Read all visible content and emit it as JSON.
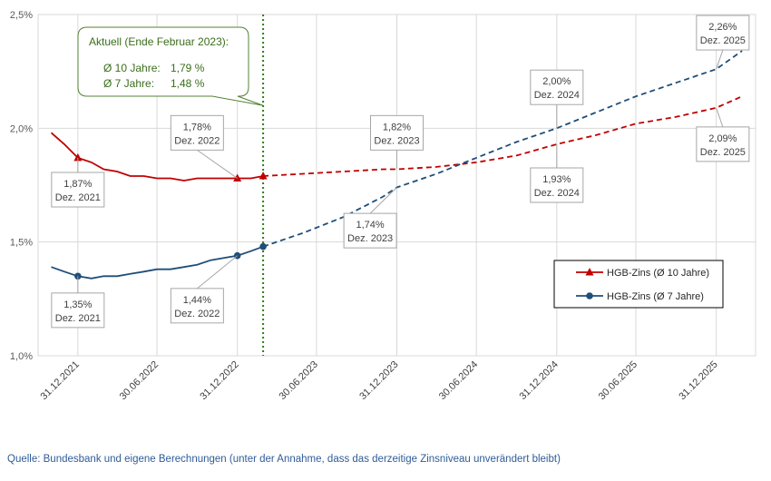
{
  "chart_data": {
    "type": "line",
    "y_axis": {
      "min": 1.0,
      "max": 2.5,
      "ticks": [
        "1,0%",
        "1,5%",
        "2,0%",
        "2,5%"
      ],
      "tick_values": [
        1.0,
        1.5,
        2.0,
        2.5
      ]
    },
    "x_axis": {
      "start": "2021-10-01",
      "end": "2026-03-31",
      "tick_labels": [
        "31.12.2021",
        "30.06.2022",
        "31.12.2022",
        "30.06.2023",
        "31.12.2023",
        "30.06.2024",
        "31.12.2024",
        "30.06.2025",
        "31.12.2025"
      ],
      "tick_dates": [
        "2021-12-31",
        "2022-06-30",
        "2022-12-31",
        "2023-06-30",
        "2023-12-31",
        "2024-06-30",
        "2024-12-31",
        "2025-06-30",
        "2025-12-31"
      ]
    },
    "current_marker_date": "2023-02-28",
    "series": [
      {
        "name": "HGB-Zins (Ø 10 Jahre)",
        "color": "#c00000",
        "marker": "triangle",
        "actual": [
          [
            "2021-10-31",
            1.98
          ],
          [
            "2021-11-30",
            1.93
          ],
          [
            "2021-12-31",
            1.87
          ],
          [
            "2022-01-31",
            1.85
          ],
          [
            "2022-02-28",
            1.82
          ],
          [
            "2022-03-31",
            1.81
          ],
          [
            "2022-04-30",
            1.79
          ],
          [
            "2022-05-31",
            1.79
          ],
          [
            "2022-06-30",
            1.78
          ],
          [
            "2022-07-31",
            1.78
          ],
          [
            "2022-08-31",
            1.77
          ],
          [
            "2022-09-30",
            1.78
          ],
          [
            "2022-10-31",
            1.78
          ],
          [
            "2022-11-30",
            1.78
          ],
          [
            "2022-12-31",
            1.78
          ],
          [
            "2023-01-31",
            1.78
          ],
          [
            "2023-02-28",
            1.79
          ]
        ],
        "forecast": [
          [
            "2023-02-28",
            1.79
          ],
          [
            "2023-05-31",
            1.8
          ],
          [
            "2023-08-31",
            1.81
          ],
          [
            "2023-11-30",
            1.82
          ],
          [
            "2023-12-31",
            1.82
          ],
          [
            "2024-03-31",
            1.83
          ],
          [
            "2024-06-30",
            1.85
          ],
          [
            "2024-09-30",
            1.88
          ],
          [
            "2024-12-31",
            1.93
          ],
          [
            "2025-03-31",
            1.97
          ],
          [
            "2025-06-30",
            2.02
          ],
          [
            "2025-09-30",
            2.05
          ],
          [
            "2025-12-31",
            2.09
          ],
          [
            "2026-02-28",
            2.14
          ]
        ]
      },
      {
        "name": "HGB-Zins (Ø 7 Jahre)",
        "color": "#1f4e79",
        "marker": "circle",
        "actual": [
          [
            "2021-10-31",
            1.39
          ],
          [
            "2021-11-30",
            1.37
          ],
          [
            "2021-12-31",
            1.35
          ],
          [
            "2022-01-31",
            1.34
          ],
          [
            "2022-02-28",
            1.35
          ],
          [
            "2022-03-31",
            1.35
          ],
          [
            "2022-04-30",
            1.36
          ],
          [
            "2022-05-31",
            1.37
          ],
          [
            "2022-06-30",
            1.38
          ],
          [
            "2022-07-31",
            1.38
          ],
          [
            "2022-08-31",
            1.39
          ],
          [
            "2022-09-30",
            1.4
          ],
          [
            "2022-10-31",
            1.42
          ],
          [
            "2022-11-30",
            1.43
          ],
          [
            "2022-12-31",
            1.44
          ],
          [
            "2023-01-31",
            1.46
          ],
          [
            "2023-02-28",
            1.48
          ]
        ],
        "forecast": [
          [
            "2023-02-28",
            1.48
          ],
          [
            "2023-05-31",
            1.54
          ],
          [
            "2023-08-31",
            1.61
          ],
          [
            "2023-11-30",
            1.7
          ],
          [
            "2023-12-31",
            1.74
          ],
          [
            "2024-03-31",
            1.8
          ],
          [
            "2024-06-30",
            1.87
          ],
          [
            "2024-09-30",
            1.94
          ],
          [
            "2024-12-31",
            2.0
          ],
          [
            "2025-03-31",
            2.07
          ],
          [
            "2025-06-30",
            2.14
          ],
          [
            "2025-09-30",
            2.2
          ],
          [
            "2025-12-31",
            2.26
          ],
          [
            "2026-02-28",
            2.34
          ]
        ]
      }
    ],
    "highlight_markers": [
      {
        "series": 0,
        "date": "2021-12-31",
        "value": 1.87
      },
      {
        "series": 0,
        "date": "2022-12-31",
        "value": 1.78
      },
      {
        "series": 0,
        "date": "2023-02-28",
        "value": 1.79
      },
      {
        "series": 1,
        "date": "2021-12-31",
        "value": 1.35
      },
      {
        "series": 1,
        "date": "2022-12-31",
        "value": 1.44
      },
      {
        "series": 1,
        "date": "2023-02-28",
        "value": 1.48
      }
    ],
    "data_labels": [
      {
        "value": "1,87%",
        "period": "Dez. 2021",
        "anchor_date": "2021-12-31",
        "anchor_value": 1.87,
        "box_date": "2021-12-31",
        "box_value": 1.73
      },
      {
        "value": "1,78%",
        "period": "Dez. 2022",
        "anchor_date": "2022-12-31",
        "anchor_value": 1.78,
        "box_date": "2022-09-30",
        "box_value": 1.98
      },
      {
        "value": "1,82%",
        "period": "Dez. 2023",
        "anchor_date": "2023-12-31",
        "anchor_value": 1.82,
        "box_date": "2023-12-31",
        "box_value": 1.98
      },
      {
        "value": "2,00%",
        "period": "Dez. 2024",
        "anchor_date": "2024-12-31",
        "anchor_value": 2.0,
        "box_date": "2024-12-31",
        "box_value": 2.18
      },
      {
        "value": "2,26%",
        "period": "Dez. 2025",
        "anchor_date": "2025-12-31",
        "anchor_value": 2.26,
        "box_date": "2026-01-15",
        "box_value": 2.42
      },
      {
        "value": "1,35%",
        "period": "Dez. 2021",
        "anchor_date": "2021-12-31",
        "anchor_value": 1.35,
        "box_date": "2021-12-31",
        "box_value": 1.2
      },
      {
        "value": "1,44%",
        "period": "Dez. 2022",
        "anchor_date": "2022-12-31",
        "anchor_value": 1.44,
        "box_date": "2022-09-30",
        "box_value": 1.22
      },
      {
        "value": "1,74%",
        "period": "Dez. 2023",
        "anchor_date": "2023-12-31",
        "anchor_value": 1.74,
        "box_date": "2023-10-31",
        "box_value": 1.55
      },
      {
        "value": "1,93%",
        "period": "Dez. 2024",
        "anchor_date": "2024-12-31",
        "anchor_value": 1.93,
        "box_date": "2024-12-31",
        "box_value": 1.75
      },
      {
        "value": "2,09%",
        "period": "Dez. 2025",
        "anchor_date": "2025-12-31",
        "anchor_value": 2.09,
        "box_date": "2026-01-15",
        "box_value": 1.93
      }
    ],
    "annotation": {
      "title": "Aktuell (Ende Februar 2023):",
      "lines": [
        {
          "label": "Ø 10 Jahre:",
          "value": "1,79 %"
        },
        {
          "label": "Ø 7 Jahre:",
          "value": "1,48 %"
        }
      ],
      "color": "#3a6e1a",
      "border_color": "#548235"
    },
    "legend": {
      "placement": "right-center",
      "entries": [
        "HGB-Zins (Ø 10 Jahre)",
        "HGB-Zins (Ø 7 Jahre)"
      ]
    },
    "grid": true
  },
  "source_note": "Quelle: Bundesbank und eigene Berechnungen (unter der Annahme, dass das derzeitige Zinsniveau unverändert bleibt)"
}
